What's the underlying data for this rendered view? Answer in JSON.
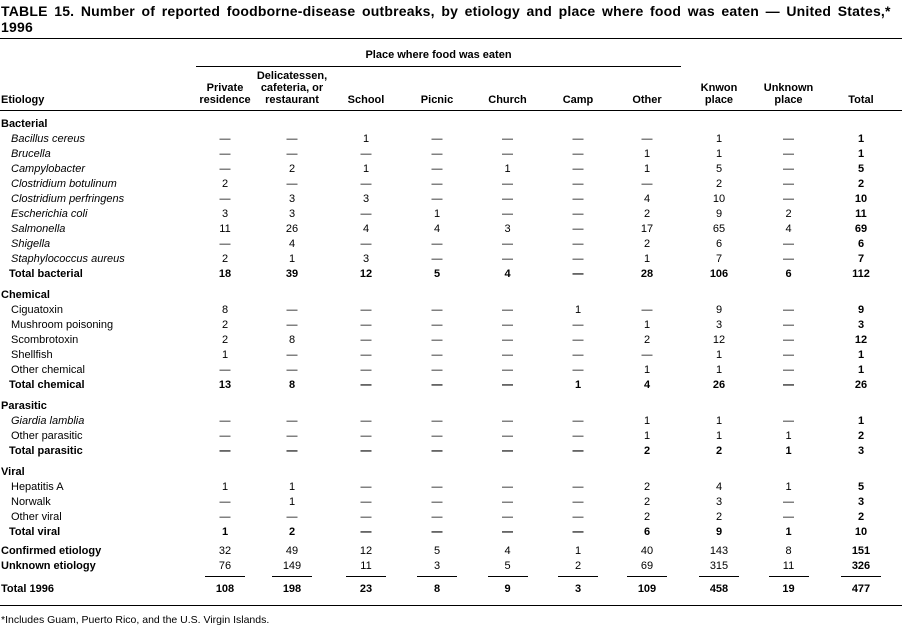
{
  "title": "TABLE 15. Number of reported foodborne-disease outbreaks, by etiology and place where food was eaten — United States,* 1996",
  "footnote": "*Includes Guam, Puerto Rico, and the U.S. Virgin Islands.",
  "table": {
    "column_group_header": "Place where food was eaten",
    "columns": [
      {
        "label": "Etiology"
      },
      {
        "label": "Private\nresidence"
      },
      {
        "label": "Delicatessen,\ncafeteria, or\nrestaurant"
      },
      {
        "label": "School"
      },
      {
        "label": "Picnic"
      },
      {
        "label": "Church"
      },
      {
        "label": "Camp"
      },
      {
        "label": "Other"
      },
      {
        "label": "Knwon\nplace"
      },
      {
        "label": "Unknown\nplace"
      },
      {
        "label": "Total"
      }
    ],
    "rows": [
      {
        "type": "section",
        "label": "Bacterial"
      },
      {
        "type": "item",
        "italic": true,
        "label": "Bacillus cereus",
        "values": [
          "—",
          "—",
          "1",
          "—",
          "—",
          "—",
          "—",
          "1",
          "—",
          "1"
        ]
      },
      {
        "type": "item",
        "italic": true,
        "label": "Brucella",
        "values": [
          "—",
          "—",
          "—",
          "—",
          "—",
          "—",
          "1",
          "1",
          "—",
          "1"
        ]
      },
      {
        "type": "item",
        "italic": true,
        "label": "Campylobacter",
        "values": [
          "—",
          "2",
          "1",
          "—",
          "1",
          "—",
          "1",
          "5",
          "—",
          "5"
        ]
      },
      {
        "type": "item",
        "italic": true,
        "label": "Clostridium botulinum",
        "values": [
          "2",
          "—",
          "—",
          "—",
          "—",
          "—",
          "—",
          "2",
          "—",
          "2"
        ]
      },
      {
        "type": "item",
        "italic": true,
        "label": "Clostridium perfringens",
        "values": [
          "—",
          "3",
          "3",
          "—",
          "—",
          "—",
          "4",
          "10",
          "—",
          "10"
        ]
      },
      {
        "type": "item",
        "italic": true,
        "label": "Escherichia coli",
        "values": [
          "3",
          "3",
          "—",
          "1",
          "—",
          "—",
          "2",
          "9",
          "2",
          "11"
        ]
      },
      {
        "type": "item",
        "italic": true,
        "label": "Salmonella",
        "values": [
          "11",
          "26",
          "4",
          "4",
          "3",
          "—",
          "17",
          "65",
          "4",
          "69"
        ]
      },
      {
        "type": "item",
        "italic": true,
        "label": "Shigella",
        "values": [
          "—",
          "4",
          "—",
          "—",
          "—",
          "—",
          "2",
          "6",
          "—",
          "6"
        ]
      },
      {
        "type": "item",
        "italic": true,
        "label": "Staphylococcus aureus",
        "values": [
          "2",
          "1",
          "3",
          "—",
          "—",
          "—",
          "1",
          "7",
          "—",
          "7"
        ]
      },
      {
        "type": "total",
        "label": "Total bacterial",
        "values": [
          "18",
          "39",
          "12",
          "5",
          "4",
          "—",
          "28",
          "106",
          "6",
          "112"
        ]
      },
      {
        "type": "section",
        "label": "Chemical"
      },
      {
        "type": "item",
        "italic": false,
        "label": "Ciguatoxin",
        "values": [
          "8",
          "—",
          "—",
          "—",
          "—",
          "1",
          "—",
          "9",
          "—",
          "9"
        ]
      },
      {
        "type": "item",
        "italic": false,
        "label": "Mushroom poisoning",
        "values": [
          "2",
          "—",
          "—",
          "—",
          "—",
          "—",
          "1",
          "3",
          "—",
          "3"
        ]
      },
      {
        "type": "item",
        "italic": false,
        "label": "Scombrotoxin",
        "values": [
          "2",
          "8",
          "—",
          "—",
          "—",
          "—",
          "2",
          "12",
          "—",
          "12"
        ]
      },
      {
        "type": "item",
        "italic": false,
        "label": "Shellfish",
        "values": [
          "1",
          "—",
          "—",
          "—",
          "—",
          "—",
          "—",
          "1",
          "—",
          "1"
        ]
      },
      {
        "type": "item",
        "italic": false,
        "label": "Other chemical",
        "values": [
          "—",
          "—",
          "—",
          "—",
          "—",
          "—",
          "1",
          "1",
          "—",
          "1"
        ]
      },
      {
        "type": "total",
        "label": "Total chemical",
        "values": [
          "13",
          "8",
          "—",
          "—",
          "—",
          "1",
          "4",
          "26",
          "—",
          "26"
        ]
      },
      {
        "type": "section",
        "label": "Parasitic"
      },
      {
        "type": "item",
        "italic": true,
        "label": "Giardia lamblia",
        "values": [
          "—",
          "—",
          "—",
          "—",
          "—",
          "—",
          "1",
          "1",
          "—",
          "1"
        ]
      },
      {
        "type": "item",
        "italic": false,
        "label": "Other parasitic",
        "values": [
          "—",
          "—",
          "—",
          "—",
          "—",
          "—",
          "1",
          "1",
          "1",
          "2"
        ]
      },
      {
        "type": "total",
        "label": "Total parasitic",
        "values": [
          "—",
          "—",
          "—",
          "—",
          "—",
          "—",
          "2",
          "2",
          "1",
          "3"
        ]
      },
      {
        "type": "section",
        "label": "Viral"
      },
      {
        "type": "item",
        "italic": false,
        "label": "Hepatitis A",
        "values": [
          "1",
          "1",
          "—",
          "—",
          "—",
          "—",
          "2",
          "4",
          "1",
          "5"
        ]
      },
      {
        "type": "item",
        "italic": false,
        "label": "Norwalk",
        "values": [
          "—",
          "1",
          "—",
          "—",
          "—",
          "—",
          "2",
          "3",
          "—",
          "3"
        ]
      },
      {
        "type": "item",
        "italic": false,
        "label": "Other viral",
        "values": [
          "—",
          "—",
          "—",
          "—",
          "—",
          "—",
          "2",
          "2",
          "—",
          "2"
        ]
      },
      {
        "type": "total",
        "label": "Total viral",
        "values": [
          "1",
          "2",
          "—",
          "—",
          "—",
          "—",
          "6",
          "9",
          "1",
          "10"
        ]
      },
      {
        "type": "summary",
        "label": "Confirmed etiology",
        "values": [
          "32",
          "49",
          "12",
          "5",
          "4",
          "1",
          "40",
          "143",
          "8",
          "151"
        ]
      },
      {
        "type": "summary",
        "underline": true,
        "label": "Unknown etiology",
        "values": [
          "76",
          "149",
          "11",
          "3",
          "5",
          "2",
          "69",
          "315",
          "11",
          "326"
        ]
      },
      {
        "type": "grand",
        "label": "Total 1996",
        "values": [
          "108",
          "198",
          "23",
          "8",
          "9",
          "3",
          "109",
          "458",
          "19",
          "477"
        ]
      }
    ]
  }
}
